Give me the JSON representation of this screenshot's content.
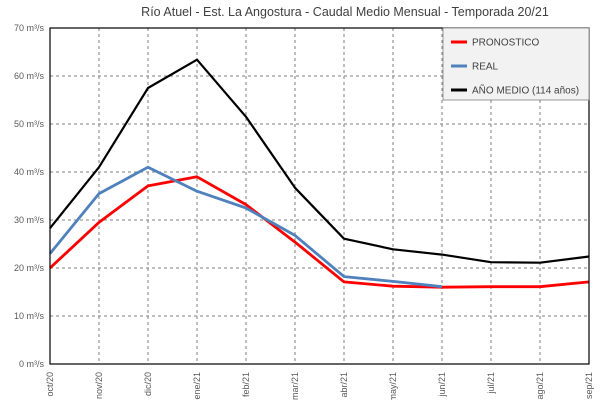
{
  "chart_data": {
    "type": "line",
    "title": "Río Atuel - Est. La Angostura - Caudal Medio Mensual - Temporada 20/21",
    "xlabel": "",
    "ylabel": "",
    "categories": [
      "oct/20",
      "nov/20",
      "dic/20",
      "ene/21",
      "feb/21",
      "mar/21",
      "abr/21",
      "may/21",
      "jun/21",
      "jul/21",
      "ago/21",
      "sep/21"
    ],
    "ylim": [
      0,
      70
    ],
    "ytick_step": 10,
    "ytick_labels": [
      "0 m³/s",
      "10 m³/s",
      "20 m³/s",
      "30 m³/s",
      "40 m³/s",
      "50 m³/s",
      "60 m³/s",
      "70 m³/s"
    ],
    "grid": true,
    "legend_position": "top-right",
    "series": [
      {
        "name": "PRONOSTICO",
        "color": "#ff0000",
        "values": [
          20.0,
          29.5,
          37.1,
          39.0,
          33.2,
          25.4,
          17.1,
          16.2,
          16.0,
          16.1,
          16.1,
          17.1
        ]
      },
      {
        "name": "REAL",
        "color": "#4f81bd",
        "values": [
          23.0,
          35.5,
          41.0,
          36.0,
          32.5,
          26.8,
          18.2,
          17.2,
          16.1,
          null,
          null,
          null
        ]
      },
      {
        "name": "AÑO MEDIO (114 años)",
        "color": "#000000",
        "values": [
          28.3,
          41.0,
          57.5,
          63.4,
          51.5,
          36.7,
          26.1,
          23.9,
          22.8,
          21.2,
          21.1,
          22.4
        ]
      }
    ]
  }
}
